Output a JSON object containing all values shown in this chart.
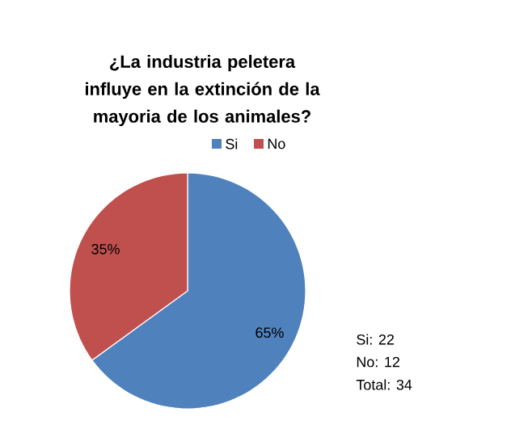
{
  "chart_data": {
    "type": "pie",
    "title": "¿La industria peletera influye en la extinción de la mayoria de los animales?",
    "categories": [
      "Si",
      "No"
    ],
    "values": [
      65,
      35
    ],
    "colors": [
      "#4f81bd",
      "#c0504d"
    ],
    "value_labels": [
      "65%",
      "35%"
    ],
    "legend": "top",
    "annotations": [
      "Si: 22",
      "No: 12",
      "Total: 34"
    ]
  }
}
